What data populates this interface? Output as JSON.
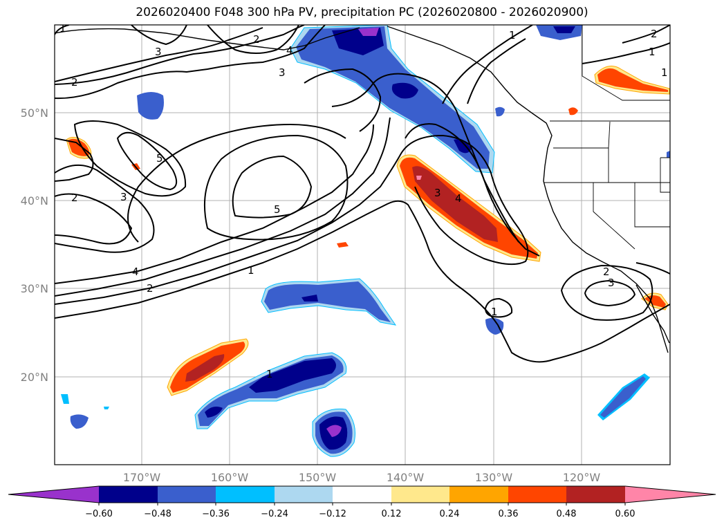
{
  "title": "2026020400 F048 300 hPa PV, precipitation PC (2026020800 - 2026020900)",
  "lat_labels": [
    "50°N",
    "40°N",
    "30°N",
    "20°N"
  ],
  "lon_labels": [
    "170°W",
    "160°W",
    "150°W",
    "140°W",
    "130°W",
    "120°W"
  ],
  "contour_labels": [
    "1",
    "1",
    "2",
    "1",
    "3",
    "3",
    "4",
    "2",
    "5",
    "5",
    "2",
    "3",
    "4",
    "2",
    "1",
    "3",
    "4",
    "1",
    "2",
    "3",
    "1",
    "2",
    "1"
  ],
  "colorbar": {
    "ticks": [
      "−0.60",
      "−0.48",
      "−0.36",
      "−0.24",
      "−0.12",
      "0.12",
      "0.24",
      "0.36",
      "0.48",
      "0.60"
    ],
    "colors": [
      "#9932cc",
      "#00008b",
      "#3a5fcd",
      "#00bfff",
      "#add8f0",
      "#ffffff",
      "#ffe88c",
      "#ffa500",
      "#ff4500",
      "#b22222",
      "#ff85a8"
    ]
  },
  "fill_colors": {
    "neg1": "#add8f0",
    "neg2": "#00bfff",
    "neg3": "#3a5fcd",
    "neg4": "#00008b",
    "neg5": "#9932cc",
    "pos1": "#ffe88c",
    "pos2": "#ffa500",
    "pos3": "#ff4500",
    "pos4": "#b22222",
    "pos5": "#ff85a8"
  }
}
